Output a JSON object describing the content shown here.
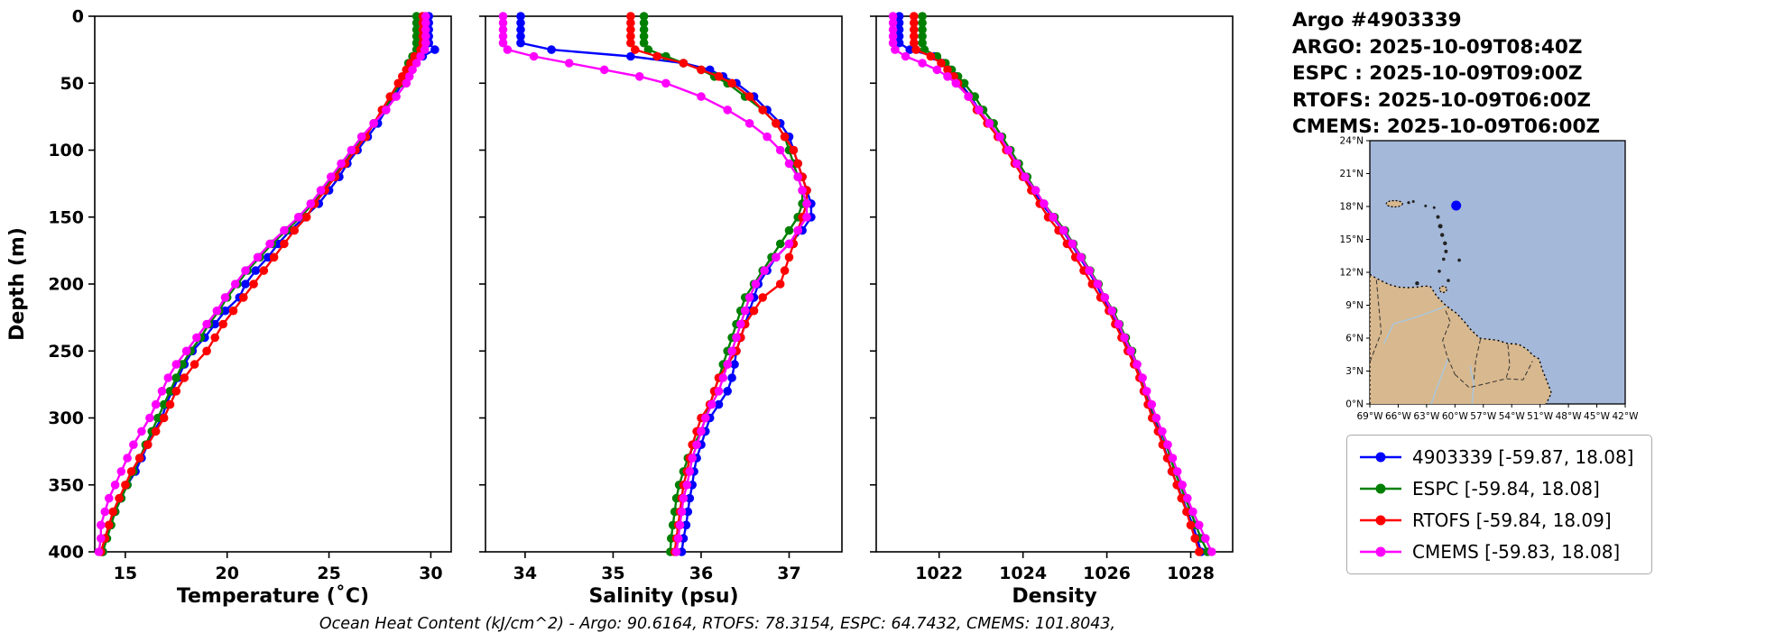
{
  "header": {
    "title": "Argo #4903339",
    "lines": [
      "ARGO: 2025-10-09T08:40Z",
      "ESPC : 2025-10-09T09:00Z",
      "RTOFS: 2025-10-09T06:00Z",
      "CMEMS: 2025-10-09T06:00Z"
    ]
  },
  "footer": {
    "ohc_text": "Ocean Heat Content (kJ/cm^2) - Argo: 90.6164,  RTOFS: 78.3154,  ESPC: 64.7432,  CMEMS: 101.8043,"
  },
  "legend": {
    "entries": [
      {
        "label": "4903339 [-59.87, 18.08]",
        "color": "#0000ff"
      },
      {
        "label": "ESPC [-59.84, 18.08]",
        "color": "#008000"
      },
      {
        "label": "RTOFS [-59.84, 18.09]",
        "color": "#ff0000"
      },
      {
        "label": "CMEMS [-59.83, 18.08]",
        "color": "#ff00ff"
      }
    ]
  },
  "map": {
    "lon_min": -69,
    "lon_max": -42,
    "lat_min": 0,
    "lat_max": 24,
    "lon_ticks": [
      "69°W",
      "66°W",
      "63°W",
      "60°W",
      "57°W",
      "54°W",
      "51°W",
      "48°W",
      "45°W",
      "42°W"
    ],
    "lat_ticks": [
      "0°N",
      "3°N",
      "6°N",
      "9°N",
      "12°N",
      "15°N",
      "18°N",
      "21°N",
      "24°N"
    ],
    "ocean_color": "#a4b8d9",
    "land_color": "#d8b88e",
    "marker": {
      "lon": -59.87,
      "lat": 18.08,
      "color": "#0000ff"
    }
  },
  "chart_data": {
    "type": "line",
    "ylabel": "Depth (m)",
    "ylim": [
      0,
      400
    ],
    "yticks": [
      0,
      50,
      100,
      150,
      200,
      250,
      300,
      350,
      400
    ],
    "depths": [
      0,
      5,
      10,
      15,
      20,
      25,
      30,
      35,
      40,
      45,
      50,
      60,
      70,
      80,
      90,
      100,
      110,
      120,
      130,
      140,
      150,
      160,
      170,
      180,
      190,
      200,
      210,
      220,
      230,
      240,
      250,
      260,
      270,
      280,
      290,
      300,
      310,
      320,
      330,
      340,
      350,
      360,
      370,
      380,
      390,
      400
    ],
    "panels": [
      {
        "xlabel": "Temperature (˚C)",
        "xlim": [
          13.5,
          31.0
        ],
        "xticks": [
          15,
          20,
          25,
          30
        ],
        "y_labels_visible": true,
        "series": [
          {
            "name": "4903339",
            "color": "#0000ff",
            "values": [
              29.9,
              29.9,
              29.9,
              29.9,
              29.9,
              30.2,
              29.6,
              29.2,
              29.0,
              28.8,
              28.6,
              28.2,
              27.8,
              27.4,
              26.9,
              26.4,
              25.9,
              25.5,
              25.0,
              24.5,
              23.8,
              23.1,
              22.5,
              22.0,
              21.4,
              20.9,
              20.6,
              19.9,
              19.4,
              18.9,
              18.3,
              17.9,
              17.6,
              17.3,
              17.0,
              16.8,
              16.4,
              16.1,
              15.8,
              15.5,
              15.1,
              14.8,
              14.5,
              14.2,
              14.0,
              13.9
            ]
          },
          {
            "name": "ESPC",
            "color": "#008000",
            "values": [
              29.3,
              29.3,
              29.3,
              29.3,
              29.3,
              29.3,
              29.1,
              28.9,
              28.8,
              28.7,
              28.5,
              28.1,
              27.7,
              27.2,
              26.7,
              26.2,
              25.7,
              25.2,
              24.7,
              24.2,
              23.6,
              22.9,
              22.2,
              21.6,
              21.0,
              20.5,
              20.0,
              19.6,
              19.1,
              18.7,
              18.2,
              17.8,
              17.5,
              17.2,
              16.9,
              16.6,
              16.3,
              16.0,
              15.7,
              15.4,
              15.1,
              14.8,
              14.5,
              14.3,
              14.1,
              13.9
            ]
          },
          {
            "name": "RTOFS",
            "color": "#ff0000",
            "values": [
              29.6,
              29.6,
              29.6,
              29.6,
              29.6,
              29.5,
              29.2,
              29.0,
              28.8,
              28.6,
              28.4,
              28.0,
              27.6,
              27.2,
              26.8,
              26.3,
              25.8,
              25.3,
              24.8,
              24.3,
              23.9,
              23.3,
              22.8,
              22.3,
              21.8,
              21.3,
              20.8,
              20.3,
              19.8,
              19.4,
              19.0,
              18.4,
              17.9,
              17.5,
              17.2,
              16.9,
              16.5,
              16.1,
              15.7,
              15.3,
              15.0,
              14.7,
              14.4,
              14.2,
              14.0,
              13.8
            ]
          },
          {
            "name": "CMEMS",
            "color": "#ff00ff",
            "values": [
              29.75,
              29.75,
              29.75,
              29.75,
              29.75,
              29.7,
              29.5,
              29.3,
              29.1,
              28.95,
              28.8,
              28.3,
              27.8,
              27.2,
              26.6,
              26.1,
              25.6,
              25.1,
              24.6,
              24.1,
              23.5,
              22.8,
              22.1,
              21.5,
              20.9,
              20.4,
              19.9,
              19.5,
              19.0,
              18.5,
              18.0,
              17.5,
              17.1,
              16.8,
              16.5,
              16.2,
              15.8,
              15.4,
              15.1,
              14.8,
              14.5,
              14.2,
              14.0,
              13.8,
              13.8,
              13.7
            ]
          }
        ]
      },
      {
        "xlabel": "Salinity (psu)",
        "xlim": [
          33.55,
          37.6
        ],
        "xticks": [
          34,
          35,
          36,
          37
        ],
        "y_labels_visible": false,
        "series": [
          {
            "name": "4903339",
            "color": "#0000ff",
            "values": [
              33.95,
              33.95,
              33.95,
              33.95,
              33.95,
              34.3,
              35.2,
              35.8,
              36.1,
              36.25,
              36.4,
              36.6,
              36.75,
              36.9,
              37.0,
              37.05,
              37.1,
              37.15,
              37.2,
              37.25,
              37.25,
              37.15,
              37.0,
              36.85,
              36.75,
              36.65,
              36.6,
              36.55,
              36.5,
              36.45,
              36.4,
              36.38,
              36.35,
              36.3,
              36.2,
              36.1,
              36.05,
              36.0,
              35.95,
              35.92,
              35.9,
              35.87,
              35.85,
              35.83,
              35.8,
              35.78
            ]
          },
          {
            "name": "ESPC",
            "color": "#008000",
            "values": [
              35.35,
              35.35,
              35.35,
              35.35,
              35.35,
              35.4,
              35.6,
              35.8,
              36.0,
              36.15,
              36.3,
              36.5,
              36.7,
              36.85,
              36.95,
              37.0,
              37.05,
              37.1,
              37.15,
              37.15,
              37.1,
              37.0,
              36.9,
              36.8,
              36.7,
              36.6,
              36.5,
              36.45,
              36.4,
              36.35,
              36.3,
              36.25,
              36.2,
              36.15,
              36.1,
              36.05,
              36.0,
              35.92,
              35.85,
              35.8,
              35.75,
              35.72,
              35.7,
              35.68,
              35.66,
              35.65
            ]
          },
          {
            "name": "RTOFS",
            "color": "#ff0000",
            "values": [
              35.2,
              35.2,
              35.2,
              35.2,
              35.2,
              35.25,
              35.5,
              35.8,
              36.0,
              36.2,
              36.35,
              36.55,
              36.7,
              36.85,
              36.95,
              37.05,
              37.1,
              37.15,
              37.2,
              37.2,
              37.15,
              37.1,
              37.05,
              37.0,
              36.95,
              36.9,
              36.7,
              36.6,
              36.5,
              36.45,
              36.4,
              36.3,
              36.2,
              36.15,
              36.1,
              36.0,
              35.95,
              35.9,
              35.87,
              35.84,
              35.8,
              35.78,
              35.76,
              35.74,
              35.72,
              35.7
            ]
          },
          {
            "name": "CMEMS",
            "color": "#ff00ff",
            "values": [
              33.75,
              33.75,
              33.75,
              33.75,
              33.75,
              33.8,
              34.1,
              34.5,
              34.9,
              35.3,
              35.6,
              36.0,
              36.3,
              36.55,
              36.75,
              36.9,
              37.0,
              37.1,
              37.15,
              37.2,
              37.2,
              37.1,
              37.0,
              36.85,
              36.72,
              36.62,
              36.55,
              36.5,
              36.45,
              36.4,
              36.35,
              36.3,
              36.25,
              36.2,
              36.12,
              36.05,
              36.0,
              35.95,
              35.9,
              35.87,
              35.84,
              35.8,
              35.78,
              35.76,
              35.74,
              35.72
            ]
          }
        ]
      },
      {
        "xlabel": "Density",
        "xlim": [
          1020.5,
          1029.0
        ],
        "xticks": [
          1022,
          1024,
          1026,
          1028
        ],
        "y_labels_visible": false,
        "series": [
          {
            "name": "4903339",
            "color": "#0000ff",
            "values": [
              1021.05,
              1021.05,
              1021.05,
              1021.05,
              1021.05,
              1021.3,
              1021.9,
              1022.1,
              1022.25,
              1022.4,
              1022.5,
              1022.75,
              1022.95,
              1023.2,
              1023.45,
              1023.65,
              1023.85,
              1024.05,
              1024.25,
              1024.45,
              1024.7,
              1024.95,
              1025.15,
              1025.35,
              1025.55,
              1025.75,
              1025.9,
              1026.1,
              1026.25,
              1026.4,
              1026.55,
              1026.7,
              1026.8,
              1026.9,
              1027.0,
              1027.1,
              1027.25,
              1027.35,
              1027.45,
              1027.55,
              1027.68,
              1027.8,
              1027.92,
              1028.05,
              1028.15,
              1028.25
            ]
          },
          {
            "name": "ESPC",
            "color": "#008000",
            "values": [
              1021.6,
              1021.6,
              1021.6,
              1021.6,
              1021.6,
              1021.65,
              1021.95,
              1022.15,
              1022.3,
              1022.45,
              1022.6,
              1022.85,
              1023.05,
              1023.3,
              1023.5,
              1023.7,
              1023.9,
              1024.1,
              1024.3,
              1024.5,
              1024.75,
              1025.0,
              1025.2,
              1025.4,
              1025.6,
              1025.8,
              1025.95,
              1026.15,
              1026.3,
              1026.45,
              1026.6,
              1026.72,
              1026.82,
              1026.92,
              1027.05,
              1027.15,
              1027.3,
              1027.42,
              1027.52,
              1027.62,
              1027.75,
              1027.87,
              1028.0,
              1028.12,
              1028.25,
              1028.4
            ]
          },
          {
            "name": "RTOFS",
            "color": "#ff0000",
            "values": [
              1021.4,
              1021.4,
              1021.4,
              1021.4,
              1021.4,
              1021.45,
              1021.8,
              1022.05,
              1022.2,
              1022.35,
              1022.45,
              1022.7,
              1022.9,
              1023.15,
              1023.4,
              1023.6,
              1023.8,
              1024.0,
              1024.2,
              1024.4,
              1024.6,
              1024.85,
              1025.05,
              1025.25,
              1025.45,
              1025.65,
              1025.85,
              1026.05,
              1026.2,
              1026.35,
              1026.5,
              1026.65,
              1026.78,
              1026.88,
              1026.98,
              1027.08,
              1027.22,
              1027.33,
              1027.44,
              1027.55,
              1027.67,
              1027.78,
              1027.9,
              1028.0,
              1028.1,
              1028.2
            ]
          },
          {
            "name": "CMEMS",
            "color": "#ff00ff",
            "values": [
              1020.9,
              1020.9,
              1020.9,
              1020.9,
              1020.9,
              1020.95,
              1021.2,
              1021.6,
              1021.95,
              1022.2,
              1022.4,
              1022.7,
              1022.95,
              1023.2,
              1023.45,
              1023.65,
              1023.85,
              1024.05,
              1024.3,
              1024.5,
              1024.72,
              1024.97,
              1025.18,
              1025.38,
              1025.58,
              1025.78,
              1025.95,
              1026.12,
              1026.28,
              1026.42,
              1026.57,
              1026.72,
              1026.85,
              1026.95,
              1027.07,
              1027.18,
              1027.32,
              1027.45,
              1027.57,
              1027.68,
              1027.8,
              1027.92,
              1028.05,
              1028.2,
              1028.35,
              1028.5
            ]
          }
        ]
      }
    ]
  }
}
